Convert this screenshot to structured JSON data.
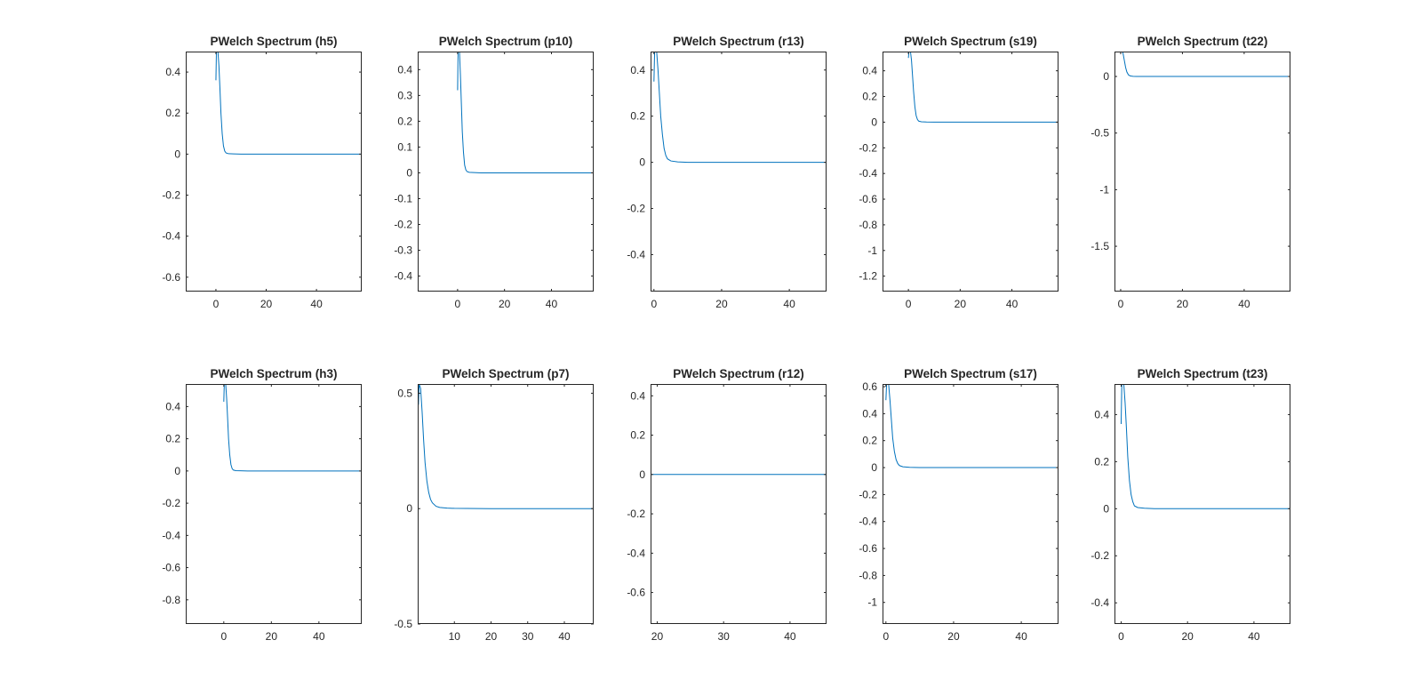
{
  "chart_data": [
    {
      "type": "line",
      "title": "PWelch Spectrum (h5)",
      "xlabel": "",
      "ylabel": "",
      "xlim": [
        -12,
        58
      ],
      "ylim": [
        -0.67,
        0.5
      ],
      "xticks": [
        0,
        20,
        40
      ],
      "yticks": [
        -0.6,
        -0.4,
        -0.2,
        0,
        0.2,
        0.4
      ],
      "xtick_labels": [
        "0",
        "20",
        "40"
      ],
      "ytick_labels": [
        "-0.6",
        "-0.4",
        "-0.2",
        "0",
        "0.2",
        "0.4"
      ],
      "series": [
        {
          "x": [
            0,
            0.2,
            0.4,
            0.6,
            0.8,
            1.2,
            1.6,
            2,
            2.5,
            3,
            3.5,
            4,
            5,
            7,
            10,
            20,
            30,
            40,
            50,
            58
          ],
          "y": [
            0.36,
            0.5,
            0.5,
            0.5,
            0.5,
            0.43,
            0.32,
            0.2,
            0.1,
            0.04,
            0.015,
            0.006,
            0.002,
            0.001,
            0,
            0,
            0,
            0,
            0,
            0
          ]
        }
      ]
    },
    {
      "type": "line",
      "title": "PWelch Spectrum (p10)",
      "xlabel": "",
      "ylabel": "",
      "xlim": [
        -17,
        58
      ],
      "ylim": [
        -0.46,
        0.47
      ],
      "xticks": [
        0,
        20,
        40
      ],
      "yticks": [
        -0.4,
        -0.3,
        -0.2,
        -0.1,
        0,
        0.1,
        0.2,
        0.3,
        0.4
      ],
      "xtick_labels": [
        "0",
        "20",
        "40"
      ],
      "ytick_labels": [
        "-0.4",
        "-0.3",
        "-0.2",
        "-0.1",
        "0",
        "0.1",
        "0.2",
        "0.3",
        "0.4"
      ],
      "series": [
        {
          "x": [
            0,
            0.2,
            0.4,
            0.6,
            0.8,
            1.2,
            1.6,
            2,
            2.5,
            3,
            3.5,
            4,
            5,
            7,
            10,
            20,
            30,
            40,
            50,
            58
          ],
          "y": [
            0.32,
            0.47,
            0.47,
            0.47,
            0.47,
            0.38,
            0.27,
            0.16,
            0.08,
            0.03,
            0.012,
            0.005,
            0.002,
            0.001,
            0,
            0,
            0,
            0,
            0,
            0
          ]
        }
      ]
    },
    {
      "type": "line",
      "title": "PWelch Spectrum (r13)",
      "xlabel": "",
      "ylabel": "",
      "xlim": [
        -1,
        51
      ],
      "ylim": [
        -0.56,
        0.48
      ],
      "xticks": [
        0,
        20,
        40
      ],
      "yticks": [
        -0.4,
        -0.2,
        0,
        0.2,
        0.4
      ],
      "xtick_labels": [
        "0",
        "20",
        "40"
      ],
      "ytick_labels": [
        "-0.4",
        "-0.2",
        "0",
        "0.2",
        "0.4"
      ],
      "series": [
        {
          "x": [
            0,
            0.2,
            0.4,
            0.6,
            0.8,
            1.2,
            1.6,
            2,
            2.5,
            3,
            3.5,
            4,
            5,
            7,
            10,
            20,
            30,
            40,
            51
          ],
          "y": [
            0.35,
            0.48,
            0.48,
            0.48,
            0.48,
            0.4,
            0.3,
            0.2,
            0.12,
            0.06,
            0.03,
            0.015,
            0.006,
            0.002,
            0,
            0,
            0,
            0,
            0
          ]
        }
      ]
    },
    {
      "type": "line",
      "title": "PWelch Spectrum (s19)",
      "xlabel": "",
      "ylabel": "",
      "xlim": [
        -10,
        58
      ],
      "ylim": [
        -1.32,
        0.55
      ],
      "xticks": [
        0,
        20,
        40
      ],
      "yticks": [
        -1.2,
        -1,
        -0.8,
        -0.6,
        -0.4,
        -0.2,
        0,
        0.2,
        0.4
      ],
      "xtick_labels": [
        "0",
        "20",
        "40"
      ],
      "ytick_labels": [
        "-1.2",
        "-1",
        "-0.8",
        "-0.6",
        "-0.4",
        "-0.2",
        "0",
        "0.2",
        "0.4"
      ],
      "series": [
        {
          "x": [
            0,
            0.2,
            0.4,
            0.6,
            0.8,
            1.2,
            1.6,
            2,
            2.5,
            3,
            3.5,
            4,
            5,
            7,
            10,
            20,
            30,
            40,
            50,
            58
          ],
          "y": [
            0.5,
            0.55,
            0.55,
            0.55,
            0.55,
            0.48,
            0.36,
            0.24,
            0.12,
            0.05,
            0.02,
            0.008,
            0.003,
            0.001,
            0,
            0,
            0,
            0,
            0,
            0
          ]
        }
      ]
    },
    {
      "type": "line",
      "title": "PWelch Spectrum (t22)",
      "xlabel": "",
      "ylabel": "",
      "xlim": [
        -2,
        55
      ],
      "ylim": [
        -1.9,
        0.22
      ],
      "xticks": [
        0,
        20,
        40
      ],
      "yticks": [
        -1.5,
        -1,
        -0.5,
        0
      ],
      "xtick_labels": [
        "0",
        "20",
        "40"
      ],
      "ytick_labels": [
        "-1.5",
        "-1",
        "-0.5",
        "0"
      ],
      "series": [
        {
          "x": [
            0,
            0.2,
            0.4,
            0.6,
            0.8,
            1.2,
            1.6,
            2,
            2.5,
            3,
            3.5,
            4,
            5,
            7,
            10,
            20,
            30,
            40,
            55
          ],
          "y": [
            0.22,
            0.22,
            0.22,
            0.22,
            0.2,
            0.14,
            0.08,
            0.04,
            0.015,
            0.006,
            0.003,
            0.001,
            0,
            0,
            0,
            0,
            0,
            0,
            0
          ]
        }
      ]
    },
    {
      "type": "line",
      "title": "PWelch Spectrum (h3)",
      "xlabel": "",
      "ylabel": "",
      "xlim": [
        -16,
        58
      ],
      "ylim": [
        -0.95,
        0.54
      ],
      "xticks": [
        0,
        20,
        40
      ],
      "yticks": [
        -0.8,
        -0.6,
        -0.4,
        -0.2,
        0,
        0.2,
        0.4
      ],
      "xtick_labels": [
        "0",
        "20",
        "40"
      ],
      "ytick_labels": [
        "-0.8",
        "-0.6",
        "-0.4",
        "-0.2",
        "0",
        "0.2",
        "0.4"
      ],
      "series": [
        {
          "x": [
            0,
            0.2,
            0.4,
            0.6,
            0.8,
            1.2,
            1.6,
            2,
            2.5,
            3,
            3.5,
            4,
            5,
            7,
            10,
            20,
            30,
            40,
            50,
            58
          ],
          "y": [
            0.43,
            0.54,
            0.54,
            0.54,
            0.54,
            0.45,
            0.33,
            0.2,
            0.1,
            0.04,
            0.015,
            0.006,
            0.002,
            0.001,
            0,
            0,
            0,
            0,
            0,
            0
          ]
        }
      ]
    },
    {
      "type": "line",
      "title": "PWelch Spectrum (p7)",
      "xlabel": "",
      "ylabel": "",
      "xlim": [
        0,
        48
      ],
      "ylim": [
        -0.5,
        0.54
      ],
      "xticks": [
        10,
        20,
        30,
        40
      ],
      "yticks": [
        -0.5,
        0,
        0.5
      ],
      "xtick_labels": [
        "10",
        "20",
        "30",
        "40"
      ],
      "ytick_labels": [
        "-0.5",
        "0",
        "0.5"
      ],
      "series": [
        {
          "x": [
            0.2,
            0.4,
            0.8,
            1.2,
            1.6,
            2,
            2.5,
            3,
            3.5,
            4,
            5,
            6,
            8,
            10,
            20,
            30,
            40,
            48
          ],
          "y": [
            0.45,
            0.54,
            0.52,
            0.42,
            0.3,
            0.2,
            0.12,
            0.07,
            0.04,
            0.025,
            0.01,
            0.005,
            0.002,
            0.001,
            0,
            0,
            0,
            0
          ]
        }
      ]
    },
    {
      "type": "line",
      "title": "PWelch Spectrum (r12)",
      "xlabel": "",
      "ylabel": "",
      "xlim": [
        19,
        45.5
      ],
      "ylim": [
        -0.76,
        0.46
      ],
      "xticks": [
        20,
        30,
        40
      ],
      "yticks": [
        -0.6,
        -0.4,
        -0.2,
        0,
        0.2,
        0.4
      ],
      "xtick_labels": [
        "20",
        "30",
        "40"
      ],
      "ytick_labels": [
        "-0.6",
        "-0.4",
        "-0.2",
        "0",
        "0.2",
        "0.4"
      ],
      "series": [
        {
          "x": [
            19,
            25,
            30,
            35,
            40,
            45.5
          ],
          "y": [
            0,
            0,
            0,
            0,
            0,
            0
          ]
        }
      ]
    },
    {
      "type": "line",
      "title": "PWelch Spectrum (s17)",
      "xlabel": "",
      "ylabel": "",
      "xlim": [
        -1,
        51
      ],
      "ylim": [
        -1.16,
        0.62
      ],
      "xticks": [
        0,
        20,
        40
      ],
      "yticks": [
        -1,
        -0.8,
        -0.6,
        -0.4,
        -0.2,
        0,
        0.2,
        0.4,
        0.6
      ],
      "xtick_labels": [
        "0",
        "20",
        "40"
      ],
      "ytick_labels": [
        "-1",
        "-0.8",
        "-0.6",
        "-0.4",
        "-0.2",
        "0",
        "0.2",
        "0.4",
        "0.6"
      ],
      "series": [
        {
          "x": [
            0,
            0.2,
            0.4,
            0.6,
            0.8,
            1.2,
            1.6,
            2,
            2.5,
            3,
            3.5,
            4,
            5,
            7,
            10,
            20,
            30,
            40,
            51
          ],
          "y": [
            0.5,
            0.62,
            0.62,
            0.62,
            0.62,
            0.5,
            0.36,
            0.22,
            0.12,
            0.06,
            0.03,
            0.015,
            0.006,
            0.002,
            0,
            0,
            0,
            0,
            0
          ]
        }
      ]
    },
    {
      "type": "line",
      "title": "PWelch Spectrum (t23)",
      "xlabel": "",
      "ylabel": "",
      "xlim": [
        -2,
        51
      ],
      "ylim": [
        -0.49,
        0.53
      ],
      "xticks": [
        0,
        20,
        40
      ],
      "yticks": [
        -0.4,
        -0.2,
        0,
        0.2,
        0.4
      ],
      "xtick_labels": [
        "0",
        "20",
        "40"
      ],
      "ytick_labels": [
        "-0.4",
        "-0.2",
        "0",
        "0.2",
        "0.4"
      ],
      "series": [
        {
          "x": [
            0,
            0.2,
            0.4,
            0.6,
            0.8,
            1.2,
            1.6,
            2,
            2.5,
            3,
            3.5,
            4,
            5,
            7,
            10,
            20,
            30,
            40,
            51
          ],
          "y": [
            0.36,
            0.53,
            0.53,
            0.53,
            0.53,
            0.45,
            0.34,
            0.22,
            0.12,
            0.06,
            0.03,
            0.012,
            0.005,
            0.002,
            0,
            0,
            0,
            0,
            0
          ]
        }
      ]
    }
  ],
  "colors": {
    "line": "#0072BD",
    "axis": "#262626",
    "background": "#ffffff"
  }
}
